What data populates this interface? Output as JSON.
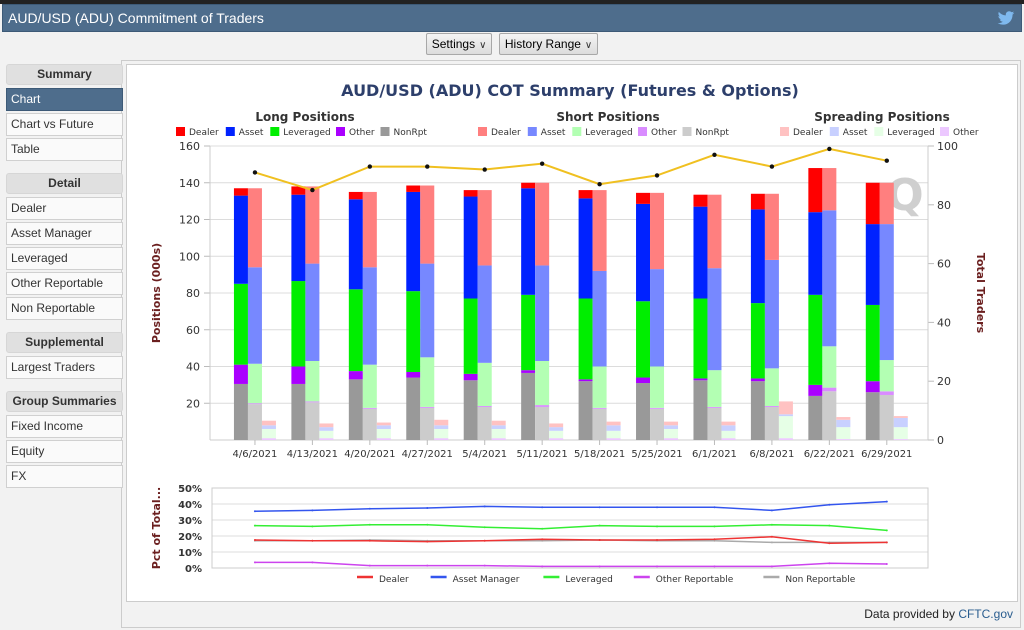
{
  "header": {
    "title": "AUD/USD (ADU) Commitment of Traders",
    "twitter_icon": "twitter-bird-icon"
  },
  "toolbar": {
    "settings_label": "Settings",
    "history_label": "History Range",
    "chevron": "∨"
  },
  "sidebar": {
    "groups": [
      {
        "title": "Summary",
        "items": [
          "Chart",
          "Chart vs Future",
          "Table"
        ],
        "active": "Chart"
      },
      {
        "title": "Detail",
        "items": [
          "Dealer",
          "Asset Manager",
          "Leveraged",
          "Other Reportable",
          "Non Reportable"
        ]
      },
      {
        "title": "Supplemental",
        "items": [
          "Largest Traders"
        ]
      },
      {
        "title": "Group Summaries",
        "items": [
          "Fixed Income",
          "Equity",
          "FX"
        ]
      }
    ]
  },
  "footer": {
    "credit_prefix": "Data provided by ",
    "credit_link": "CFTC.gov"
  },
  "chart_data": [
    {
      "type": "bar",
      "title": "AUD/USD (ADU) COT Summary (Futures & Options)",
      "ylabel": "Positions (000s)",
      "y2label": "Total Traders",
      "ylim": [
        0,
        160
      ],
      "y2lim": [
        0,
        100
      ],
      "yticks": [
        20,
        40,
        60,
        80,
        100,
        120,
        140,
        160
      ],
      "y2ticks": [
        0,
        20,
        40,
        60,
        80,
        100
      ],
      "grid": true,
      "watermark": "Q",
      "categories": [
        "4/6/2021",
        "4/13/2021",
        "4/20/2021",
        "4/27/2021",
        "5/4/2021",
        "5/11/2021",
        "5/18/2021",
        "5/25/2021",
        "6/1/2021",
        "6/8/2021",
        "6/22/2021",
        "6/29/2021"
      ],
      "groups": [
        {
          "name": "Long Positions",
          "legend": [
            {
              "name": "Dealer",
              "color": "#ff0000"
            },
            {
              "name": "Asset",
              "color": "#0022ff"
            },
            {
              "name": "Leveraged",
              "color": "#00ee00"
            },
            {
              "name": "Other",
              "color": "#aa00ff"
            },
            {
              "name": "NonRpt",
              "color": "#999999"
            }
          ],
          "series": {
            "NonRpt": [
              30.5,
              30.5,
              33,
              34,
              32.5,
              36.5,
              32,
              31,
              32.5,
              32,
              24,
              26
            ],
            "Other": [
              10.5,
              9.5,
              4.5,
              3,
              3.5,
              1.5,
              1,
              3,
              1,
              1.5,
              6,
              6
            ],
            "Leveraged": [
              44,
              46.5,
              44.5,
              44,
              41,
              41,
              44,
              41.5,
              43.5,
              41,
              49,
              41.5
            ],
            "Asset": [
              48,
              47,
              49,
              54,
              55.5,
              58,
              54.5,
              53,
              50,
              51,
              45,
              44
            ],
            "Dealer": [
              4,
              4.5,
              4,
              3.5,
              3.5,
              3,
              4.5,
              6,
              6.5,
              8.5,
              24,
              22.5
            ]
          }
        },
        {
          "name": "Short Positions",
          "legend": [
            {
              "name": "Dealer",
              "color": "#ff7f7f"
            },
            {
              "name": "Asset",
              "color": "#7788ff"
            },
            {
              "name": "Leveraged",
              "color": "#b3ffb3"
            },
            {
              "name": "Other",
              "color": "#d98cff"
            },
            {
              "name": "NonRpt",
              "color": "#cccccc"
            }
          ],
          "series": {
            "NonRpt": [
              19.5,
              20.5,
              17,
              17.5,
              18,
              18,
              17,
              17,
              17.5,
              18,
              26.5,
              24.5
            ],
            "Other": [
              0.5,
              0.5,
              0.5,
              0.5,
              0.5,
              1,
              0.5,
              0.5,
              0.5,
              0.5,
              2,
              2
            ],
            "Leveraged": [
              21.5,
              22,
              23.5,
              27,
              23.5,
              24,
              22.5,
              22.5,
              20,
              20.5,
              22.5,
              17
            ],
            "Asset": [
              52.5,
              53,
              53,
              51,
              53,
              52,
              52,
              53,
              55.5,
              59,
              74,
              74
            ],
            "Dealer": [
              43,
              42,
              41,
              42.5,
              41,
              45,
              44,
              41.5,
              40,
              36,
              23,
              22.5
            ]
          }
        },
        {
          "name": "Spreading Positions",
          "legend": [
            {
              "name": "Dealer",
              "color": "#ffc2c2"
            },
            {
              "name": "Asset",
              "color": "#c8d0ff"
            },
            {
              "name": "Leveraged",
              "color": "#e6ffe6"
            },
            {
              "name": "Other",
              "color": "#ecc8ff"
            }
          ],
          "series": {
            "Other": [
              1,
              1,
              1,
              1,
              1,
              1,
              1,
              1,
              1,
              1,
              0.5,
              0.5
            ],
            "Leveraged": [
              5,
              4,
              5,
              5,
              5,
              4,
              4,
              5,
              4,
              12,
              6.5,
              6.5
            ],
            "Asset": [
              2,
              2,
              2,
              2,
              2,
              2,
              3,
              2,
              3,
              1,
              4,
              5
            ],
            "Dealer": [
              2.5,
              2,
              1.5,
              3,
              2.5,
              2,
              2,
              2,
              2,
              7,
              1.5,
              1
            ]
          }
        }
      ],
      "total_traders": {
        "color": "#f0c020",
        "values": [
          91,
          85,
          93,
          93,
          92,
          94,
          87,
          90,
          97,
          93,
          99,
          95
        ]
      }
    },
    {
      "type": "line",
      "ylabel": "Pct of Total...",
      "ylim": [
        0,
        50
      ],
      "yticks": [
        "0%",
        "10%",
        "20%",
        "30%",
        "40%",
        "50%"
      ],
      "grid": true,
      "legend_position": "bottom",
      "series": [
        {
          "name": "Dealer",
          "color": "#ee3333",
          "values": [
            17.5,
            17,
            17,
            16.5,
            17,
            18,
            17.5,
            17.5,
            18,
            19.5,
            15.5,
            16
          ]
        },
        {
          "name": "Asset Manager",
          "color": "#3355ee",
          "values": [
            35.5,
            36,
            37,
            37.5,
            38.5,
            38,
            38,
            38,
            38,
            36,
            39.5,
            41.5
          ]
        },
        {
          "name": "Leveraged",
          "color": "#33ee33",
          "values": [
            26.5,
            26,
            27,
            27,
            25.5,
            24.5,
            26.5,
            26,
            26,
            27,
            26.5,
            23.5
          ]
        },
        {
          "name": "Other Reportable",
          "color": "#cc44ee",
          "values": [
            3.5,
            3.5,
            1.5,
            1.5,
            1.5,
            1,
            1,
            1,
            1,
            1,
            3,
            2.5
          ]
        },
        {
          "name": "Non Reportable",
          "color": "#aaaaaa",
          "values": [
            17,
            17,
            17.5,
            17,
            17,
            17,
            17.5,
            17,
            17,
            16,
            16,
            16
          ]
        }
      ]
    }
  ]
}
